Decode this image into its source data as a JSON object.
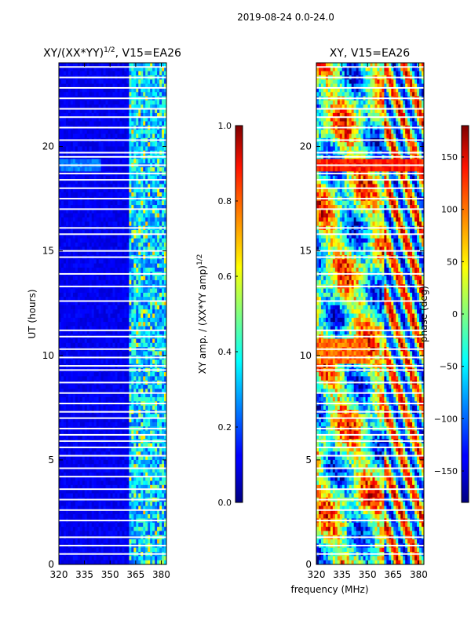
{
  "suptitle": "2019-08-24 0.0-24.0",
  "chart_data": [
    {
      "type": "heatmap",
      "title_main": "XY/(XX*YY)",
      "title_exp": "1/2",
      "title_suffix": ", V15=EA26",
      "ylabel": "UT (hours)",
      "xlabel": "",
      "xlim": [
        320,
        383
      ],
      "ylim": [
        0,
        24
      ],
      "xticks": [
        320,
        335,
        350,
        365,
        380
      ],
      "yticks": [
        0,
        5,
        10,
        15,
        20
      ],
      "xtick_labels": [
        "320",
        "335",
        "350",
        "365",
        "380"
      ],
      "ytick_labels": [
        "0",
        "5",
        "10",
        "15",
        "20"
      ],
      "colorbar": {
        "label_main": "XY amp. / (XX*YY amp)",
        "label_exp": "1/2",
        "range": [
          0.0,
          1.0
        ],
        "ticks": [
          0.0,
          0.2,
          0.4,
          0.6,
          0.8,
          1.0
        ],
        "tick_labels": [
          "0.0",
          "0.2",
          "0.4",
          "0.6",
          "0.8",
          "1.0"
        ]
      }
    },
    {
      "type": "heatmap",
      "title_main": "XY, V15=EA26",
      "title_exp": "",
      "title_suffix": "",
      "ylabel": "",
      "xlabel": "frequency (MHz)",
      "xlim": [
        320,
        383
      ],
      "ylim": [
        0,
        24
      ],
      "xticks": [
        320,
        335,
        350,
        365,
        380
      ],
      "yticks": [
        0,
        5,
        10,
        15,
        20
      ],
      "xtick_labels": [
        "320",
        "335",
        "350",
        "365",
        "380"
      ],
      "ytick_labels": [
        "0",
        "5",
        "10",
        "15",
        "20"
      ],
      "colorbar": {
        "label_main": "phase (deg)",
        "label_exp": "",
        "range": [
          -180,
          180
        ],
        "ticks": [
          -150,
          -100,
          -50,
          0,
          50,
          100,
          150
        ],
        "tick_labels": [
          "−150",
          "−100",
          "−50",
          "0",
          "50",
          "100",
          "150"
        ]
      }
    }
  ],
  "flagged_hours": [
    0.5,
    0.9,
    1.3,
    2.1,
    2.6,
    3.1,
    3.6,
    4.2,
    4.6,
    5.2,
    5.6,
    5.9,
    6.2,
    6.5,
    7.0,
    7.3,
    7.7,
    8.2,
    8.7,
    9.3,
    9.5,
    9.9,
    10.3,
    10.9,
    11.2,
    12.6,
    13.3,
    13.9,
    14.7,
    15.0,
    15.8,
    16.1,
    17.0,
    17.5,
    18.0,
    18.4,
    18.7,
    19.1,
    19.5,
    19.7,
    20.3,
    20.9,
    21.4,
    21.8,
    22.3,
    22.8,
    23.3,
    23.8
  ]
}
